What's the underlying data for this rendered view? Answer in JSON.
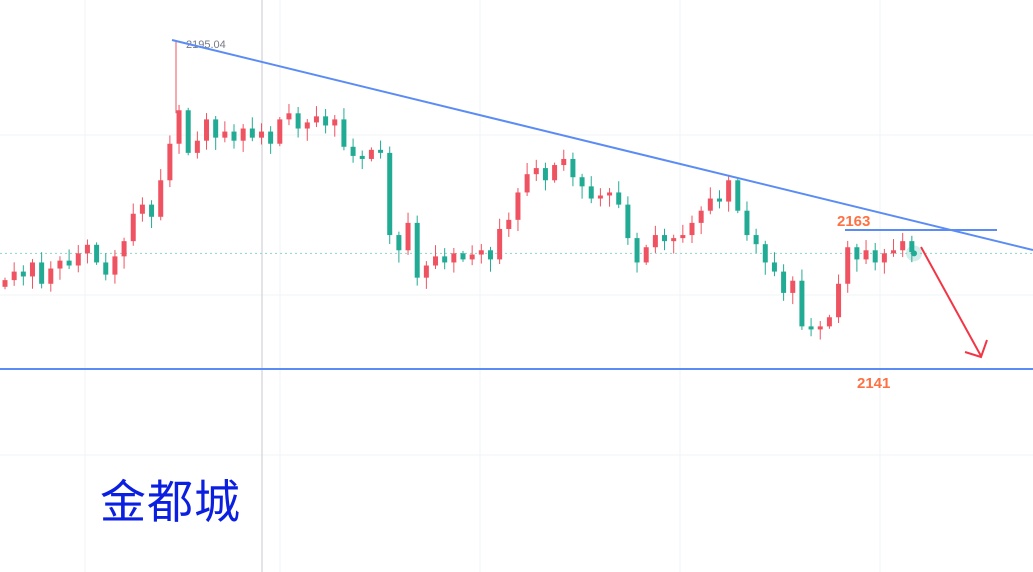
{
  "chart_data": {
    "type": "candlestick",
    "title": "",
    "ylim": [
      2132,
      2201
    ],
    "grid": true,
    "colors": {
      "up": "#ef5361",
      "down": "#22ab94",
      "trendline": "#5b8cf5",
      "arrow": "#f23645",
      "label": "#ff7043"
    },
    "open_first": 2154.5,
    "close": [
      2155.6,
      2157.0,
      2156.2,
      2158.5,
      2155.0,
      2157.5,
      2158.8,
      2158.0,
      2160.0,
      2161.4,
      2158.5,
      2156.5,
      2159.5,
      2162.0,
      2166.5,
      2168.0,
      2166.0,
      2172.0,
      2178.0,
      2183.5,
      2176.5,
      2178.5,
      2182.0,
      2179.0,
      2180.0,
      2178.5,
      2180.5,
      2179.0,
      2180.0,
      2178.0,
      2182.0,
      2183.0,
      2180.5,
      2181.5,
      2182.5,
      2181.0,
      2182.0,
      2177.5,
      2176.0,
      2175.5,
      2177.0,
      2176.5,
      2163.0,
      2160.5,
      2165.0,
      2156.0,
      2158.0,
      2159.5,
      2158.5,
      2160.0,
      2159.0,
      2159.8,
      2160.5,
      2159.0,
      2164.0,
      2165.5,
      2170.0,
      2173.0,
      2174.0,
      2172.0,
      2174.5,
      2175.5,
      2172.5,
      2171.0,
      2169.0,
      2169.5,
      2170.0,
      2168.0,
      2162.5,
      2158.5,
      2161.0,
      2163.0,
      2162.0,
      2162.5,
      2163.0,
      2165.0,
      2167.0,
      2169.0,
      2168.5,
      2172.0,
      2167.0,
      2163.0,
      2161.5,
      2158.5,
      2157.0,
      2153.5,
      2155.5,
      2148.0,
      2147.5,
      2148.0,
      2149.5,
      2155.0,
      2161.0,
      2159.0,
      2160.5,
      2158.5,
      2160.0,
      2160.5,
      2162.0,
      2160.2
    ],
    "high_label": "2195.04",
    "high_value": 2195.04,
    "current_price": 2160.0,
    "annotations": {
      "resistance_label": "2163",
      "resistance_value": 2163,
      "support_label": "2141",
      "support_value": 2141,
      "trendline": {
        "from_price": 2195.04,
        "to_price": 2160.5
      }
    }
  },
  "watermark": "金都城"
}
